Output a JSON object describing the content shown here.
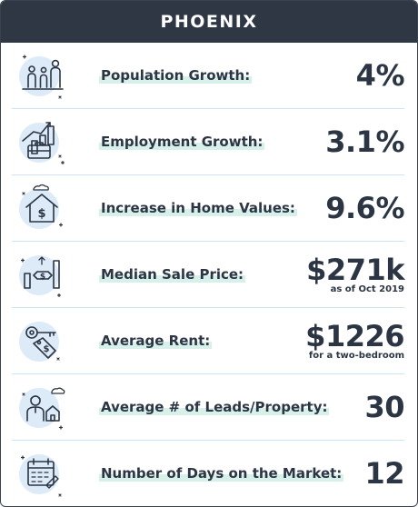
{
  "title": "PHOENIX",
  "rows": [
    {
      "icon": "family-icon",
      "label": "Population Growth:",
      "value": "4%",
      "note": ""
    },
    {
      "icon": "briefcase-chart-icon",
      "label": "Employment Growth:",
      "value": "3.1%",
      "note": ""
    },
    {
      "icon": "house-dollar-icon",
      "label": "Increase in Home Values:",
      "value": "9.6%",
      "note": ""
    },
    {
      "icon": "price-bars-icon",
      "label": "Median Sale Price:",
      "value": "$271k",
      "note": "as of Oct 2019"
    },
    {
      "icon": "key-tag-icon",
      "label": "Average Rent:",
      "value": "$1226",
      "note": "for a two-bedroom"
    },
    {
      "icon": "person-house-icon",
      "label": "Average # of Leads/Property:",
      "value": "30",
      "note": ""
    },
    {
      "icon": "calendar-icon",
      "label": "Number of Days on the Market:",
      "value": "12",
      "note": ""
    }
  ],
  "colors": {
    "header": "#2f3745",
    "text": "#2b3544",
    "accent": "#dcebf7",
    "highlight": "#d8f0ea"
  }
}
